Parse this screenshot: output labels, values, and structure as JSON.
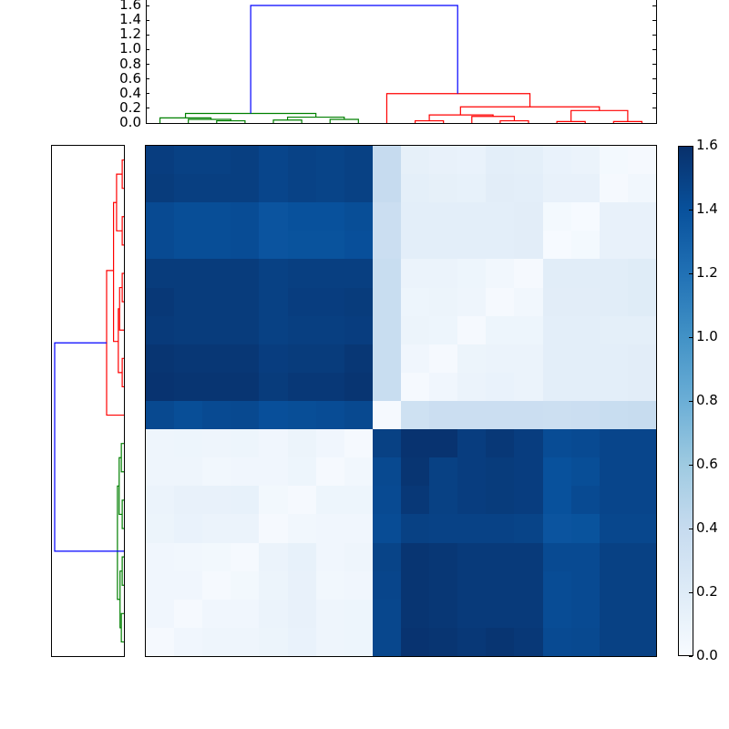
{
  "chart_data": {
    "type": "heatmap",
    "title": "",
    "description": "Clustered distance matrix (18x18) with hierarchical-clustering dendrograms on top and left, and a Blues colorbar",
    "colormap": "Blues",
    "colorbar": {
      "range": [
        0.0,
        1.6
      ],
      "ticks": [
        "0.0",
        "0.2",
        "0.4",
        "0.6",
        "0.8",
        "1.0",
        "1.2",
        "1.4",
        "1.6"
      ]
    },
    "top_dendrogram": {
      "yaxis_ticks": [
        "0.0",
        "0.2",
        "0.4",
        "0.6",
        "0.8",
        "1.0",
        "1.2",
        "1.4",
        "1.6"
      ],
      "ylim": [
        0.0,
        1.6
      ],
      "cluster_colors": {
        "cluster_a": "#008000",
        "cluster_b": "#ff0000",
        "root": "#0000ff"
      },
      "links": [
        {
          "x": [
            0,
            1.8
          ],
          "h": 0.07,
          "color": "#008000"
        },
        {
          "x": [
            1,
            2.5
          ],
          "h": 0.05,
          "color": "#008000"
        },
        {
          "x": [
            2,
            3
          ],
          "h": 0.03,
          "color": "#008000"
        },
        {
          "x": [
            0.9,
            5.5
          ],
          "h": 0.13,
          "color": "#008000"
        },
        {
          "x": [
            4,
            5
          ],
          "h": 0.04,
          "color": "#008000"
        },
        {
          "x": [
            4.5,
            6.5
          ],
          "h": 0.08,
          "color": "#008000"
        },
        {
          "x": [
            6,
            7
          ],
          "h": 0.05,
          "color": "#008000"
        },
        {
          "x": [
            9,
            10
          ],
          "h": 0.03,
          "color": "#ff0000"
        },
        {
          "x": [
            11,
            12.5
          ],
          "h": 0.09,
          "color": "#ff0000"
        },
        {
          "x": [
            12,
            13
          ],
          "h": 0.03,
          "color": "#ff0000"
        },
        {
          "x": [
            9.5,
            11.75
          ],
          "h": 0.11,
          "color": "#ff0000"
        },
        {
          "x": [
            14,
            15
          ],
          "h": 0.02,
          "color": "#ff0000"
        },
        {
          "x": [
            16,
            17
          ],
          "h": 0.02,
          "color": "#ff0000"
        },
        {
          "x": [
            14.5,
            16.5
          ],
          "h": 0.17,
          "color": "#ff0000"
        },
        {
          "x": [
            10.6,
            15.5
          ],
          "h": 0.22,
          "color": "#ff0000"
        },
        {
          "x": [
            8,
            13.05
          ],
          "h": 0.4,
          "color": "#ff0000"
        },
        {
          "x": [
            3.2,
            10.5
          ],
          "h": 1.6,
          "color": "#0000ff"
        }
      ]
    },
    "left_dendrogram": {
      "links": [
        {
          "y": [
            0,
            1
          ],
          "h": 0.04,
          "color": "#ff0000"
        },
        {
          "y": [
            2,
            3
          ],
          "h": 0.04,
          "color": "#ff0000"
        },
        {
          "y": [
            0.5,
            2.5
          ],
          "h": 0.17,
          "color": "#ff0000"
        },
        {
          "y": [
            4,
            5
          ],
          "h": 0.04,
          "color": "#ff0000"
        },
        {
          "y": [
            7,
            8
          ],
          "h": 0.04,
          "color": "#ff0000"
        },
        {
          "y": [
            4.5,
            6
          ],
          "h": 0.1,
          "color": "#ff0000"
        },
        {
          "y": [
            5.25,
            7.5
          ],
          "h": 0.13,
          "color": "#ff0000"
        },
        {
          "y": [
            1.5,
            6.4
          ],
          "h": 0.24,
          "color": "#ff0000"
        },
        {
          "y": [
            3.9,
            9
          ],
          "h": 0.4,
          "color": "#ff0000"
        },
        {
          "y": [
            10,
            11
          ],
          "h": 0.06,
          "color": "#008000"
        },
        {
          "y": [
            12,
            13
          ],
          "h": 0.04,
          "color": "#008000"
        },
        {
          "y": [
            10.5,
            12.5
          ],
          "h": 0.11,
          "color": "#008000"
        },
        {
          "y": [
            14,
            15
          ],
          "h": 0.04,
          "color": "#008000"
        },
        {
          "y": [
            16,
            17
          ],
          "h": 0.06,
          "color": "#008000"
        },
        {
          "y": [
            14.5,
            16.5
          ],
          "h": 0.09,
          "color": "#008000"
        },
        {
          "y": [
            11.5,
            15.5
          ],
          "h": 0.15,
          "color": "#008000"
        },
        {
          "y": [
            6.45,
            13.8
          ],
          "h": 1.6,
          "color": "#0000ff"
        }
      ]
    },
    "matrix": [
      [
        1.52,
        1.5,
        1.5,
        1.51,
        1.47,
        1.49,
        1.48,
        1.5,
        0.4,
        0.14,
        0.12,
        0.11,
        0.16,
        0.15,
        0.11,
        0.1,
        0.03,
        0.02
      ],
      [
        1.53,
        1.51,
        1.51,
        1.51,
        1.47,
        1.49,
        1.48,
        1.5,
        0.4,
        0.15,
        0.14,
        0.13,
        0.17,
        0.16,
        0.12,
        0.12,
        0.02,
        0.05
      ],
      [
        1.44,
        1.42,
        1.42,
        1.43,
        1.38,
        1.4,
        1.4,
        1.42,
        0.36,
        0.16,
        0.16,
        0.16,
        0.16,
        0.17,
        0.03,
        0.01,
        0.12,
        0.12
      ],
      [
        1.44,
        1.42,
        1.42,
        1.43,
        1.38,
        1.39,
        1.39,
        1.41,
        0.36,
        0.16,
        0.16,
        0.16,
        0.16,
        0.17,
        0.01,
        0.03,
        0.12,
        0.12
      ],
      [
        1.53,
        1.53,
        1.53,
        1.53,
        1.5,
        1.51,
        1.51,
        1.51,
        0.38,
        0.1,
        0.1,
        0.08,
        0.05,
        0.02,
        0.18,
        0.18,
        0.18,
        0.19
      ],
      [
        1.55,
        1.53,
        1.53,
        1.53,
        1.5,
        1.52,
        1.52,
        1.53,
        0.38,
        0.08,
        0.09,
        0.07,
        0.02,
        0.05,
        0.17,
        0.17,
        0.18,
        0.19
      ],
      [
        1.54,
        1.53,
        1.53,
        1.53,
        1.5,
        1.51,
        1.51,
        1.52,
        0.38,
        0.09,
        0.08,
        0.02,
        0.08,
        0.08,
        0.16,
        0.16,
        0.15,
        0.15
      ],
      [
        1.57,
        1.56,
        1.56,
        1.56,
        1.52,
        1.53,
        1.53,
        1.56,
        0.38,
        0.06,
        0.02,
        0.09,
        0.1,
        0.1,
        0.16,
        0.16,
        0.16,
        0.17
      ],
      [
        1.58,
        1.57,
        1.57,
        1.57,
        1.53,
        1.55,
        1.55,
        1.57,
        0.38,
        0.02,
        0.06,
        0.1,
        0.11,
        0.1,
        0.16,
        0.16,
        0.16,
        0.17
      ],
      [
        1.45,
        1.42,
        1.44,
        1.45,
        1.41,
        1.42,
        1.43,
        1.45,
        0.02,
        0.33,
        0.36,
        0.36,
        0.36,
        0.36,
        0.35,
        0.36,
        0.38,
        0.39
      ],
      [
        0.07,
        0.08,
        0.07,
        0.08,
        0.06,
        0.09,
        0.06,
        0.02,
        1.5,
        1.58,
        1.58,
        1.52,
        1.55,
        1.52,
        1.43,
        1.44,
        1.47,
        1.47
      ],
      [
        0.07,
        0.07,
        0.05,
        0.06,
        0.06,
        0.08,
        0.02,
        0.05,
        1.45,
        1.57,
        1.5,
        1.52,
        1.53,
        1.52,
        1.4,
        1.42,
        1.47,
        1.47
      ],
      [
        0.1,
        0.12,
        0.12,
        0.13,
        0.04,
        0.02,
        0.08,
        0.08,
        1.44,
        1.55,
        1.5,
        1.52,
        1.53,
        1.52,
        1.4,
        1.44,
        1.47,
        1.47
      ],
      [
        0.09,
        0.11,
        0.1,
        0.1,
        0.02,
        0.05,
        0.06,
        0.06,
        1.43,
        1.5,
        1.49,
        1.49,
        1.49,
        1.48,
        1.38,
        1.39,
        1.46,
        1.46
      ],
      [
        0.06,
        0.05,
        0.04,
        0.02,
        0.1,
        0.13,
        0.06,
        0.07,
        1.48,
        1.57,
        1.56,
        1.54,
        1.54,
        1.54,
        1.44,
        1.44,
        1.5,
        1.5
      ],
      [
        0.06,
        0.06,
        0.02,
        0.04,
        0.09,
        0.12,
        0.05,
        0.06,
        1.47,
        1.57,
        1.56,
        1.54,
        1.54,
        1.54,
        1.43,
        1.44,
        1.5,
        1.5
      ],
      [
        0.06,
        0.02,
        0.06,
        0.06,
        0.1,
        0.12,
        0.07,
        0.08,
        1.46,
        1.57,
        1.56,
        1.54,
        1.54,
        1.54,
        1.43,
        1.44,
        1.5,
        1.5
      ],
      [
        0.02,
        0.06,
        0.07,
        0.07,
        0.09,
        0.11,
        0.07,
        0.08,
        1.46,
        1.58,
        1.57,
        1.55,
        1.57,
        1.55,
        1.44,
        1.45,
        1.5,
        1.5
      ]
    ]
  }
}
